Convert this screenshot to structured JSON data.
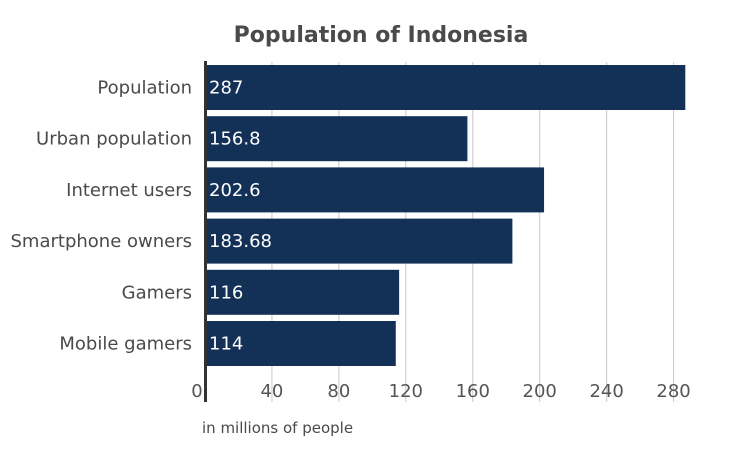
{
  "chart_data": {
    "type": "bar",
    "orientation": "horizontal",
    "title": "Population of  Indonesia",
    "xlabel": "in millions of people",
    "ylabel": "",
    "categories": [
      "Population",
      "Urban population",
      "Internet users",
      "Smartphone owners",
      "Gamers",
      "Mobile gamers"
    ],
    "values": [
      287,
      156.8,
      202.6,
      183.68,
      116,
      114
    ],
    "value_labels": [
      "287",
      "156.8",
      "202.6",
      "183.68",
      "116",
      "114"
    ],
    "xticks": [
      0,
      40,
      80,
      120,
      160,
      200,
      240,
      280
    ],
    "xlim": [
      0,
      290
    ],
    "grid": "vertical",
    "bar_color": "#133157",
    "grid_color": "#c8c8c8"
  }
}
